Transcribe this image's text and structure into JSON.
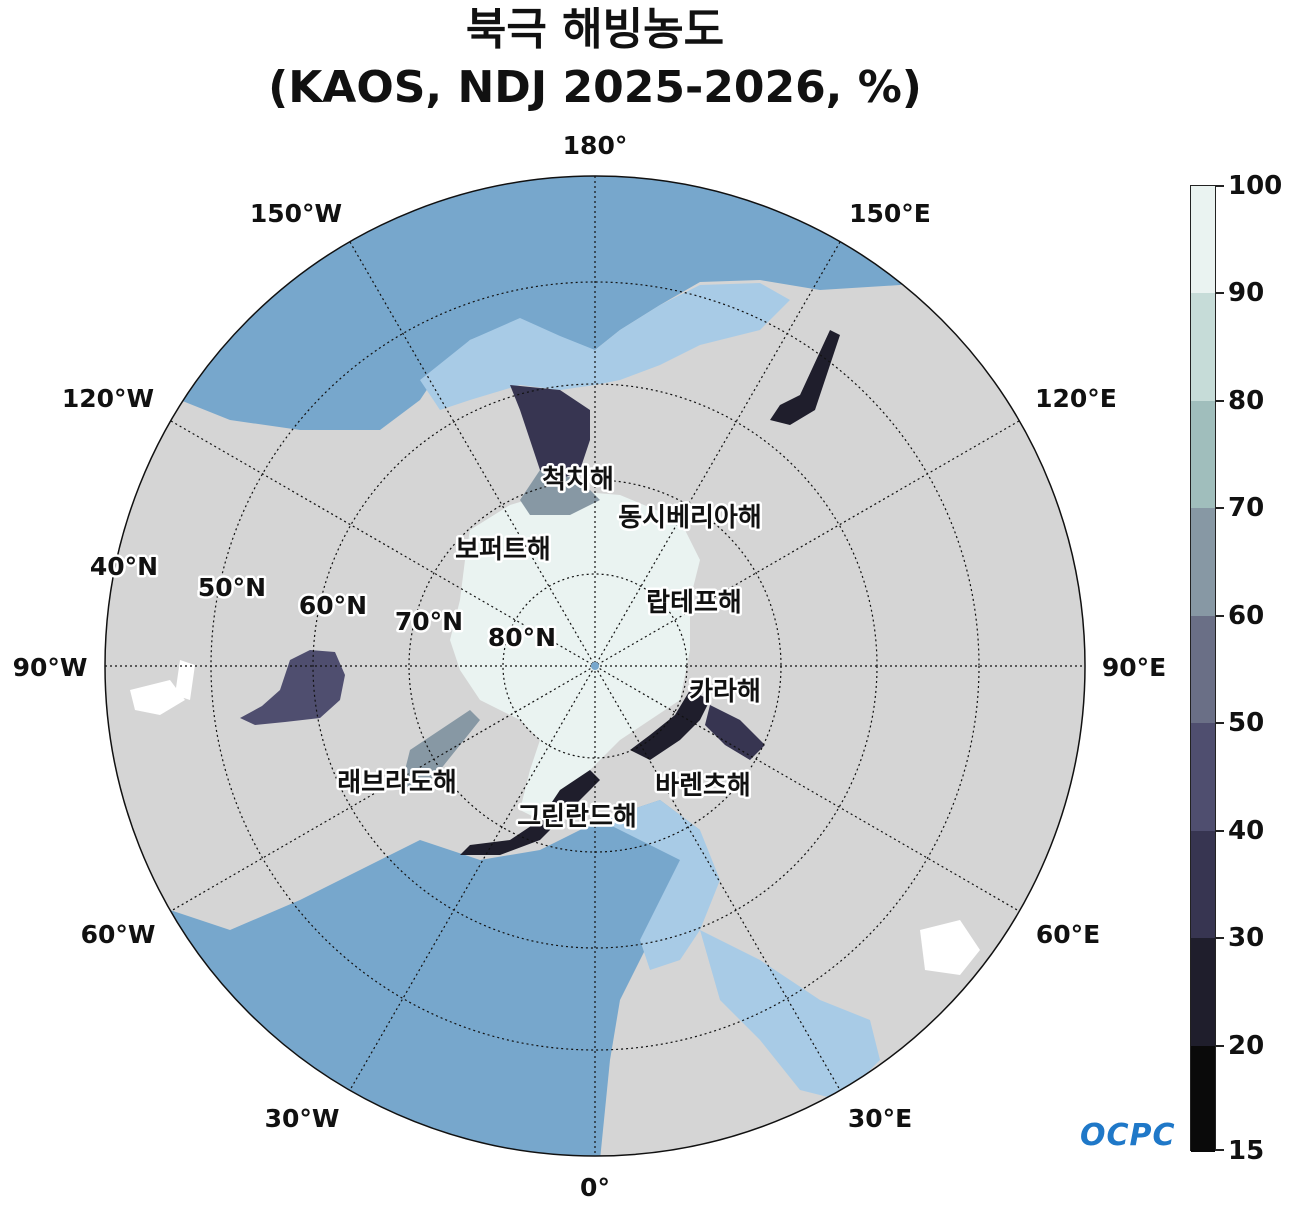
{
  "title": {
    "line1": "북극 해빙농도",
    "line2": "(KAOS, NDJ 2025-2026, %)"
  },
  "longitude_labels": {
    "lon_180": "180°",
    "lon_150w": "150°W",
    "lon_150e": "150°E",
    "lon_120w": "120°W",
    "lon_120e": "120°E",
    "lon_90w": "90°W",
    "lon_90e": "90°E",
    "lon_60w": "60°W",
    "lon_60e": "60°E",
    "lon_30w": "30°W",
    "lon_30e": "30°E",
    "lon_0": "0°"
  },
  "latitude_labels": {
    "lat_40": "40°N",
    "lat_50": "50°N",
    "lat_60": "60°N",
    "lat_70": "70°N",
    "lat_80": "80°N"
  },
  "seas": {
    "chukchi": "척치해",
    "east_siberian": "동시베리아해",
    "beaufort": "보퍼트해",
    "laptev": "랍테프해",
    "kara": "카라해",
    "barents": "바렌츠해",
    "labrador": "래브라도해",
    "greenland": "그린란드해"
  },
  "colorbar": {
    "labels": [
      "100",
      "90",
      "80",
      "70",
      "60",
      "50",
      "40",
      "30",
      "20",
      "15"
    ],
    "colors": [
      "#eaf3f1",
      "#c6dcd8",
      "#a0bebc",
      "#8798a4",
      "#6a6f86",
      "#4f4e6f",
      "#373551",
      "#1f1e2c",
      "#0a0a0a"
    ]
  },
  "logo": "OCPC",
  "palette": {
    "land": "#d5d5d5",
    "ocean": "#77a7cc",
    "ocean_shallow": "#a8cbe6",
    "ice_high": "#eaf3f1"
  }
}
